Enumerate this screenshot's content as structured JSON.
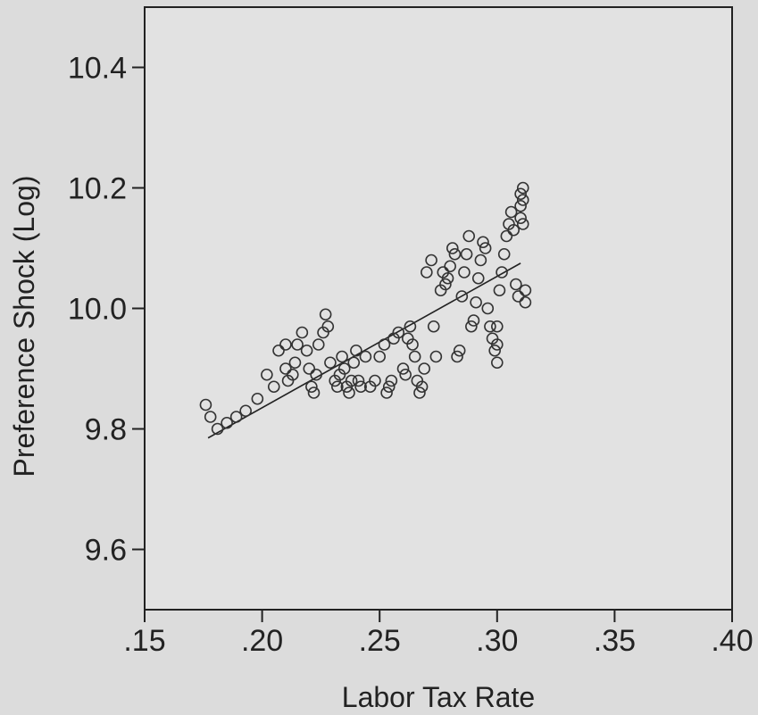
{
  "chart_data": {
    "type": "scatter",
    "title": "",
    "xlabel": "Labor Tax Rate",
    "ylabel": "Preference Shock (Log)",
    "xlim": [
      0.15,
      0.4
    ],
    "ylim": [
      9.5,
      10.5
    ],
    "x_ticks": [
      0.15,
      0.2,
      0.25,
      0.3,
      0.35,
      0.4
    ],
    "x_tick_labels": [
      ".15",
      ".20",
      ".25",
      ".30",
      ".35",
      ".40"
    ],
    "y_ticks": [
      9.6,
      9.8,
      10.0,
      10.2,
      10.4
    ],
    "y_tick_labels": [
      "9.6",
      "9.8",
      "10.0",
      "10.2",
      "10.4"
    ],
    "grid": false,
    "legend": "none",
    "fit_line": {
      "x": [
        0.177,
        0.31
      ],
      "y": [
        9.785,
        10.075
      ]
    },
    "points": [
      [
        0.176,
        9.84
      ],
      [
        0.178,
        9.82
      ],
      [
        0.181,
        9.8
      ],
      [
        0.185,
        9.81
      ],
      [
        0.189,
        9.82
      ],
      [
        0.193,
        9.83
      ],
      [
        0.198,
        9.85
      ],
      [
        0.202,
        9.89
      ],
      [
        0.205,
        9.87
      ],
      [
        0.207,
        9.93
      ],
      [
        0.21,
        9.94
      ],
      [
        0.21,
        9.9
      ],
      [
        0.211,
        9.88
      ],
      [
        0.213,
        9.89
      ],
      [
        0.214,
        9.91
      ],
      [
        0.215,
        9.94
      ],
      [
        0.217,
        9.96
      ],
      [
        0.219,
        9.93
      ],
      [
        0.22,
        9.9
      ],
      [
        0.221,
        9.87
      ],
      [
        0.222,
        9.86
      ],
      [
        0.223,
        9.89
      ],
      [
        0.224,
        9.94
      ],
      [
        0.226,
        9.96
      ],
      [
        0.227,
        9.99
      ],
      [
        0.228,
        9.97
      ],
      [
        0.229,
        9.91
      ],
      [
        0.231,
        9.88
      ],
      [
        0.232,
        9.87
      ],
      [
        0.233,
        9.89
      ],
      [
        0.234,
        9.92
      ],
      [
        0.235,
        9.9
      ],
      [
        0.236,
        9.87
      ],
      [
        0.237,
        9.86
      ],
      [
        0.238,
        9.88
      ],
      [
        0.239,
        9.91
      ],
      [
        0.24,
        9.93
      ],
      [
        0.241,
        9.88
      ],
      [
        0.242,
        9.87
      ],
      [
        0.244,
        9.92
      ],
      [
        0.246,
        9.87
      ],
      [
        0.248,
        9.88
      ],
      [
        0.25,
        9.92
      ],
      [
        0.252,
        9.94
      ],
      [
        0.253,
        9.86
      ],
      [
        0.254,
        9.87
      ],
      [
        0.255,
        9.88
      ],
      [
        0.256,
        9.95
      ],
      [
        0.258,
        9.96
      ],
      [
        0.26,
        9.9
      ],
      [
        0.261,
        9.89
      ],
      [
        0.262,
        9.95
      ],
      [
        0.263,
        9.97
      ],
      [
        0.264,
        9.94
      ],
      [
        0.265,
        9.92
      ],
      [
        0.266,
        9.88
      ],
      [
        0.267,
        9.86
      ],
      [
        0.268,
        9.87
      ],
      [
        0.269,
        9.9
      ],
      [
        0.27,
        10.06
      ],
      [
        0.272,
        10.08
      ],
      [
        0.273,
        9.97
      ],
      [
        0.274,
        9.92
      ],
      [
        0.276,
        10.03
      ],
      [
        0.277,
        10.06
      ],
      [
        0.278,
        10.04
      ],
      [
        0.279,
        10.05
      ],
      [
        0.28,
        10.07
      ],
      [
        0.281,
        10.1
      ],
      [
        0.282,
        10.09
      ],
      [
        0.283,
        9.92
      ],
      [
        0.284,
        9.93
      ],
      [
        0.285,
        10.02
      ],
      [
        0.286,
        10.06
      ],
      [
        0.287,
        10.09
      ],
      [
        0.288,
        10.12
      ],
      [
        0.289,
        9.97
      ],
      [
        0.29,
        9.98
      ],
      [
        0.291,
        10.01
      ],
      [
        0.292,
        10.05
      ],
      [
        0.293,
        10.08
      ],
      [
        0.294,
        10.11
      ],
      [
        0.295,
        10.1
      ],
      [
        0.296,
        10.0
      ],
      [
        0.297,
        9.97
      ],
      [
        0.298,
        9.95
      ],
      [
        0.299,
        9.93
      ],
      [
        0.3,
        9.91
      ],
      [
        0.3,
        9.94
      ],
      [
        0.3,
        9.97
      ],
      [
        0.301,
        10.03
      ],
      [
        0.302,
        10.06
      ],
      [
        0.303,
        10.09
      ],
      [
        0.304,
        10.12
      ],
      [
        0.305,
        10.14
      ],
      [
        0.306,
        10.16
      ],
      [
        0.307,
        10.13
      ],
      [
        0.308,
        10.04
      ],
      [
        0.309,
        10.02
      ],
      [
        0.31,
        10.15
      ],
      [
        0.31,
        10.17
      ],
      [
        0.31,
        10.19
      ],
      [
        0.311,
        10.2
      ],
      [
        0.311,
        10.18
      ],
      [
        0.311,
        10.14
      ],
      [
        0.312,
        10.01
      ],
      [
        0.312,
        10.03
      ]
    ]
  }
}
